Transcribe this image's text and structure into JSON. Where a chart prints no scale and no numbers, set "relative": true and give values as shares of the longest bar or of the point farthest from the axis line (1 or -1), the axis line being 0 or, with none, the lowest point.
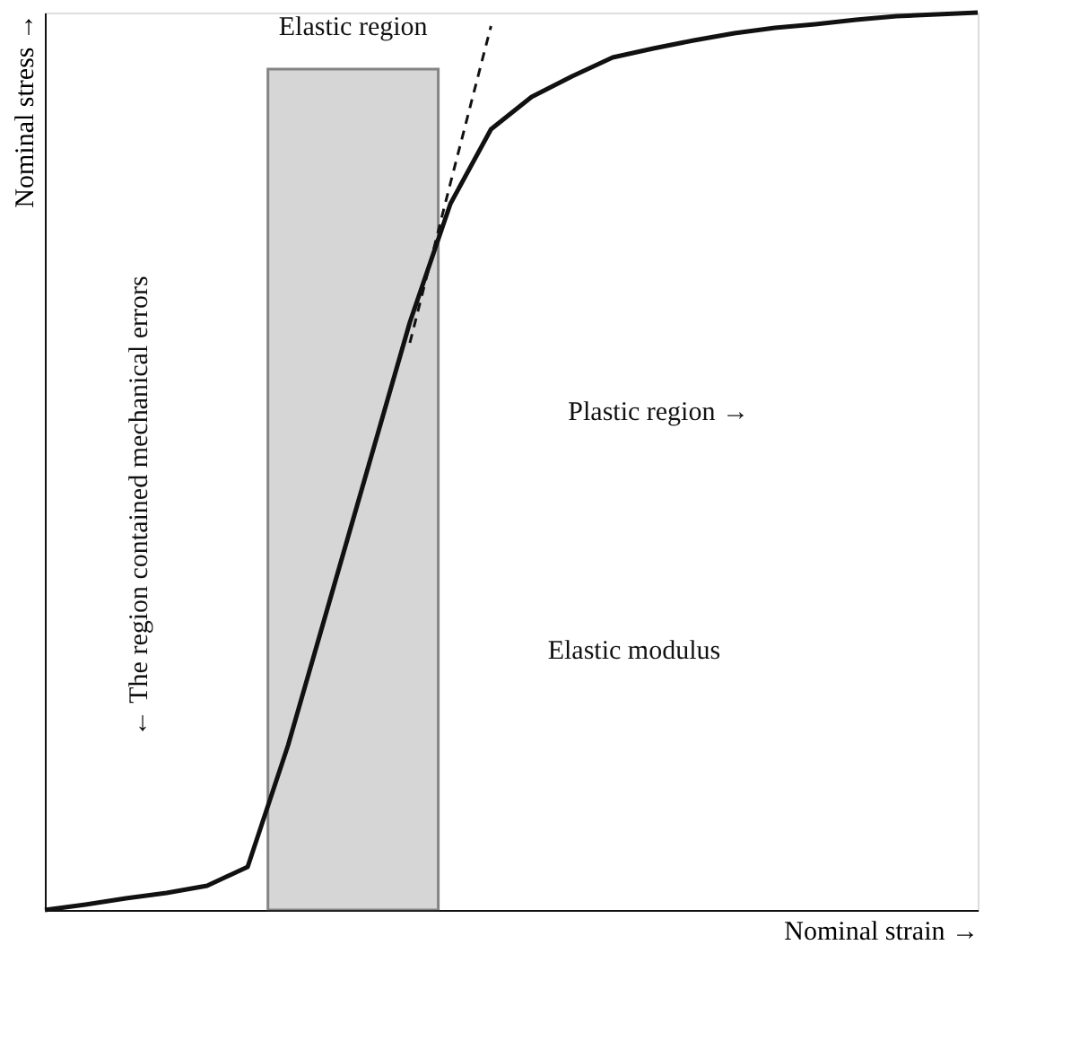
{
  "chart_data": {
    "type": "line",
    "relative": true,
    "xlabel": "Nominal strain →",
    "ylabel": "Nominal stress →",
    "categories": [
      null,
      null,
      null,
      null,
      null,
      null,
      null,
      null,
      null,
      null,
      null,
      null,
      null,
      null,
      null,
      null,
      null,
      null,
      null,
      null,
      null,
      null,
      null,
      null
    ],
    "series": [
      {
        "color": "#111111",
        "line_style": "solid",
        "values": [
          0,
          0.006,
          0.013,
          0.019,
          0.027,
          0.048,
          0.184,
          0.341,
          0.498,
          0.655,
          0.787,
          0.87,
          0.906,
          0.929,
          0.95,
          0.96,
          0.969,
          0.977,
          0.983,
          0.987,
          0.992,
          0.996,
          0.998,
          1
        ]
      },
      {
        "color": "#111111",
        "line_style": "dashed",
        "values": [
          null,
          null,
          null,
          null,
          null,
          null,
          null,
          null,
          null,
          0.632,
          0.81,
          0.985,
          null,
          null,
          null,
          null,
          null,
          null,
          null,
          null,
          null,
          null,
          null,
          null
        ]
      }
    ],
    "annotations": [
      "Elastic region",
      "Plastic region →",
      "Elastic modulus",
      "← The region contained mechanical errors"
    ],
    "grid": false,
    "marker": "none"
  }
}
